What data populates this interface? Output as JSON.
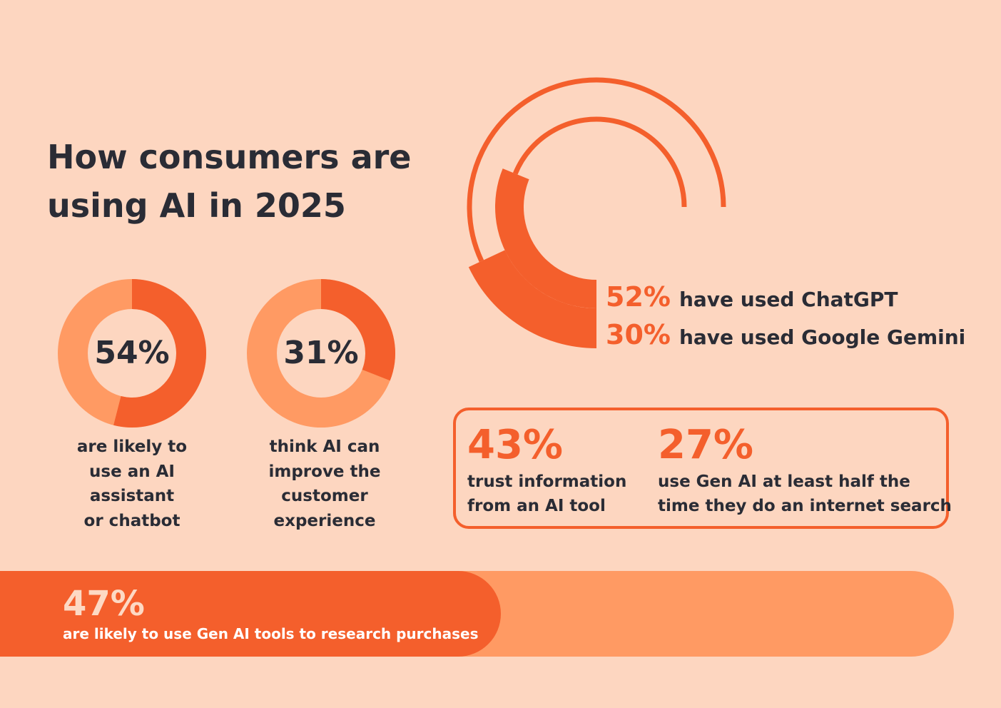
{
  "colors": {
    "background": "#FDD6C0",
    "accent": "#F45F2C",
    "light_accent": "#FF9A63",
    "text": "#2A2C35",
    "white": "#FFFFFF",
    "pale_text": "#FDD9C4"
  },
  "title": {
    "line1": "How consumers are",
    "line2": "using AI in 2025"
  },
  "chart_data": [
    {
      "type": "pie",
      "title": "",
      "categories": [
        "are likely to use an AI assistant or chatbot",
        "others"
      ],
      "values": [
        54,
        46
      ],
      "label": "54%",
      "caption_lines": [
        "are likely to",
        "use an AI",
        "assistant",
        "or chatbot"
      ]
    },
    {
      "type": "pie",
      "title": "",
      "categories": [
        "think AI can improve the customer experience",
        "others"
      ],
      "values": [
        31,
        69
      ],
      "label": "31%",
      "caption_lines": [
        "think AI can",
        "improve the",
        "customer",
        "experience"
      ]
    },
    {
      "type": "radial-bar",
      "series": [
        {
          "name": "have used ChatGPT",
          "value": 52,
          "label": "52%"
        },
        {
          "name": "have used Google Gemini",
          "value": 30,
          "label": "30%"
        }
      ]
    },
    {
      "type": "table",
      "stats": [
        {
          "value": 43,
          "label": "43%",
          "lines": [
            "trust information",
            "from an AI tool"
          ]
        },
        {
          "value": 27,
          "label": "27%",
          "lines": [
            "use Gen AI at least half the",
            "time they do an internet search"
          ]
        }
      ]
    },
    {
      "type": "bar",
      "categories": [
        "are likely to use Gen AI tools to research purchases"
      ],
      "values": [
        47
      ],
      "label": "47%",
      "text": "are likely to use Gen AI tools to research purchases",
      "ylim": [
        0,
        100
      ]
    }
  ]
}
